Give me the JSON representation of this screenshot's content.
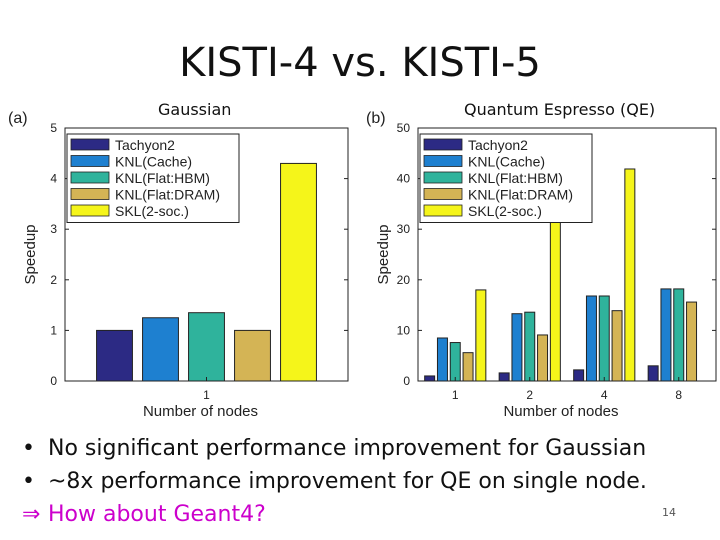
{
  "slide": {
    "title": "KISTI-4 vs. KISTI-5",
    "page_number": "14"
  },
  "bullets": [
    {
      "marker": "•",
      "text": "No significant performance improvement for Gaussian"
    },
    {
      "marker": "•",
      "text": "~8x performance improvement for QE on single node."
    },
    {
      "marker": "⇒",
      "text": "How about Geant4?"
    }
  ],
  "colors": {
    "Tachyon2": "#2c2a84",
    "KNL(Cache)": "#1e80d0",
    "KNL(Flat:HBM)": "#2fb39c",
    "KNL(Flat:DRAM)": "#d4b455",
    "SKL(2-soc.)": "#f5f51a",
    "arrow": "#cc00cc"
  },
  "chart_data": [
    {
      "type": "bar",
      "panel_label": "(a)",
      "subtitle": "Gaussian",
      "categories": [
        "1"
      ],
      "xlabel": "Number of nodes",
      "ylabel": "Speedup",
      "ylim": [
        0,
        5
      ],
      "yticks": [
        "0",
        "1",
        "2",
        "3",
        "4",
        "5"
      ],
      "legend_position": "top-left",
      "series": [
        {
          "name": "Tachyon2",
          "values": [
            1.0
          ]
        },
        {
          "name": "KNL(Cache)",
          "values": [
            1.25
          ]
        },
        {
          "name": "KNL(Flat:HBM)",
          "values": [
            1.35
          ]
        },
        {
          "name": "KNL(Flat:DRAM)",
          "values": [
            1.0
          ]
        },
        {
          "name": "SKL(2-soc.)",
          "values": [
            4.3
          ]
        }
      ]
    },
    {
      "type": "bar",
      "panel_label": "(b)",
      "subtitle": "Quantum Espresso (QE)",
      "categories": [
        "1",
        "2",
        "4",
        "8"
      ],
      "xlabel": "Number of nodes",
      "ylabel": "Speedup",
      "ylim": [
        0,
        50
      ],
      "yticks": [
        "0",
        "10",
        "20",
        "30",
        "40",
        "50"
      ],
      "legend_position": "top-left",
      "series": [
        {
          "name": "Tachyon2",
          "values": [
            1.0,
            1.6,
            2.2,
            3.0
          ]
        },
        {
          "name": "KNL(Cache)",
          "values": [
            8.5,
            13.3,
            16.8,
            18.2
          ]
        },
        {
          "name": "KNL(Flat:HBM)",
          "values": [
            7.6,
            13.6,
            16.8,
            18.2
          ]
        },
        {
          "name": "KNL(Flat:DRAM)",
          "values": [
            5.6,
            9.1,
            13.9,
            15.6
          ]
        },
        {
          "name": "SKL(2-soc.)",
          "values": [
            18.0,
            31.9,
            41.9,
            null
          ]
        }
      ]
    }
  ]
}
